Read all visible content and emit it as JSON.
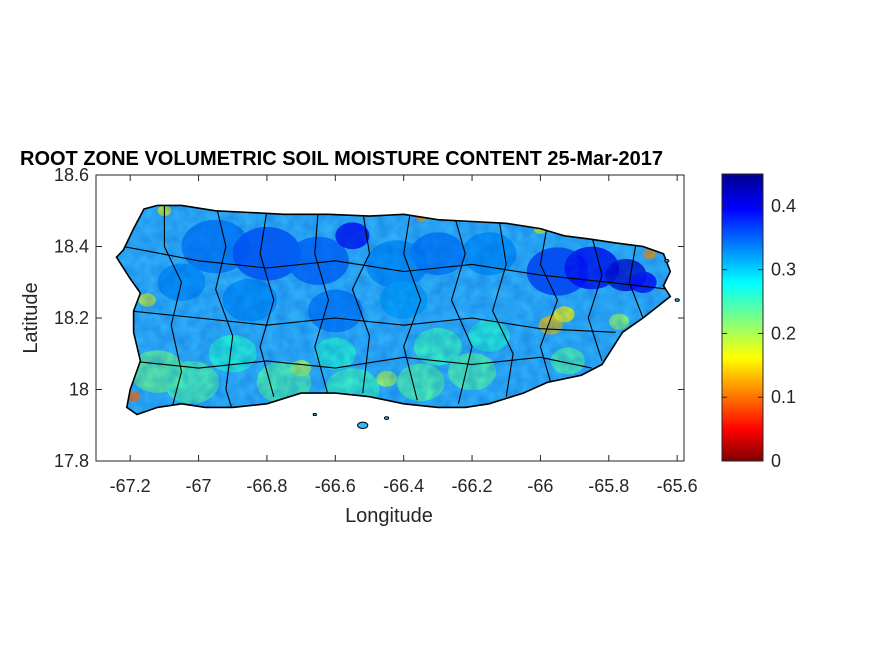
{
  "figure": {
    "title": "ROOT ZONE VOLUMETRIC SOIL MOISTURE CONTENT 25-Mar-2017",
    "xlabel": "Longitude",
    "ylabel": "Latitude"
  },
  "map_data": {
    "region": "Puerto Rico",
    "variable": "root zone volumetric soil moisture content",
    "date": "25-Mar-2017",
    "xlim": [
      -67.3,
      -65.58
    ],
    "ylim": [
      17.8,
      18.6
    ],
    "x_ticks": [
      -67.2,
      -67,
      -66.8,
      -66.6,
      -66.4,
      -66.2,
      -66,
      -65.8,
      -65.6
    ],
    "x_tick_labels": [
      "-67.2",
      "-67",
      "-66.8",
      "-66.6",
      "-66.4",
      "-66.2",
      "-66",
      "-65.8",
      "-65.6"
    ],
    "y_ticks": [
      17.8,
      18,
      18.2,
      18.4,
      18.6
    ],
    "y_tick_labels": [
      "17.8",
      "18",
      "18.2",
      "18.4",
      "18.6"
    ],
    "colorbar": {
      "colormap": "jet",
      "range": [
        0,
        0.45
      ],
      "ticks": [
        0,
        0.1,
        0.2,
        0.3,
        0.4
      ],
      "tick_labels": [
        "0",
        "0.1",
        "0.2",
        "0.3",
        "0.4"
      ]
    },
    "border_color": "#000000"
  }
}
